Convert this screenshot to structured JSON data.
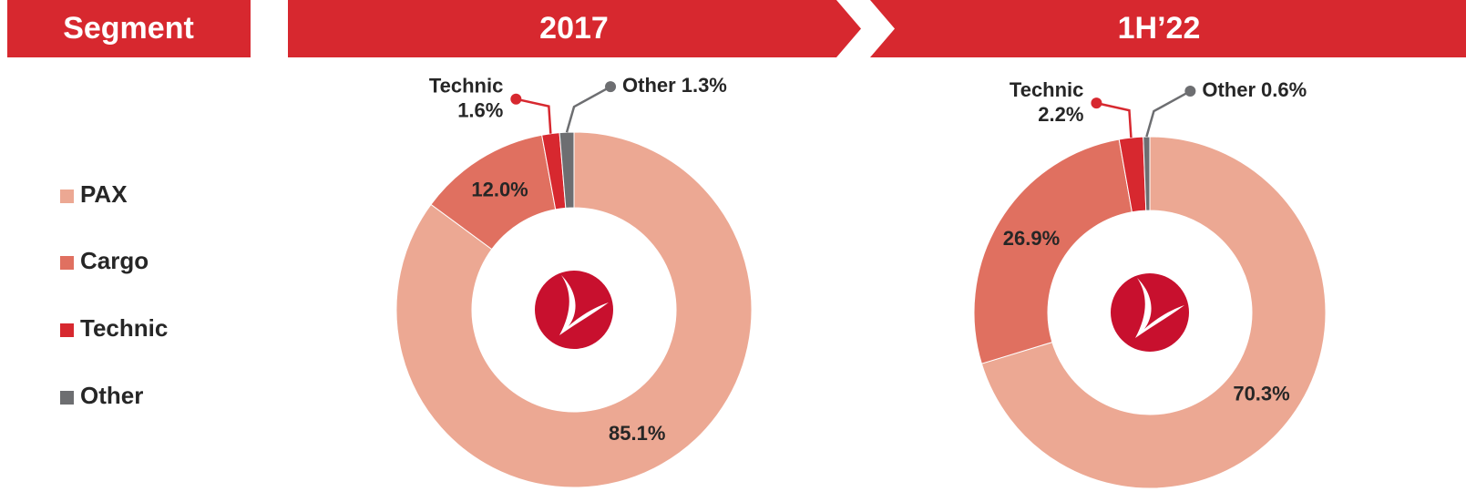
{
  "legend_title": "Segment",
  "chart_data": [
    {
      "type": "donut",
      "title": "2017",
      "categories": [
        "PAX",
        "Cargo",
        "Technic",
        "Other"
      ],
      "values": [
        85.1,
        12.0,
        1.6,
        1.3
      ],
      "value_labels": [
        "85.1%",
        "12.0%",
        "1.6%",
        "1.3%"
      ],
      "colors": [
        "#eca893",
        "#e07060",
        "#d7282f",
        "#6d6e71"
      ]
    },
    {
      "type": "donut",
      "title": "1H’22",
      "categories": [
        "PAX",
        "Cargo",
        "Technic",
        "Other"
      ],
      "values": [
        70.3,
        26.9,
        2.2,
        0.6
      ],
      "value_labels": [
        "70.3%",
        "26.9%",
        "2.2%",
        "0.6%"
      ],
      "colors": [
        "#eca893",
        "#e07060",
        "#d7282f",
        "#6d6e71"
      ]
    }
  ]
}
